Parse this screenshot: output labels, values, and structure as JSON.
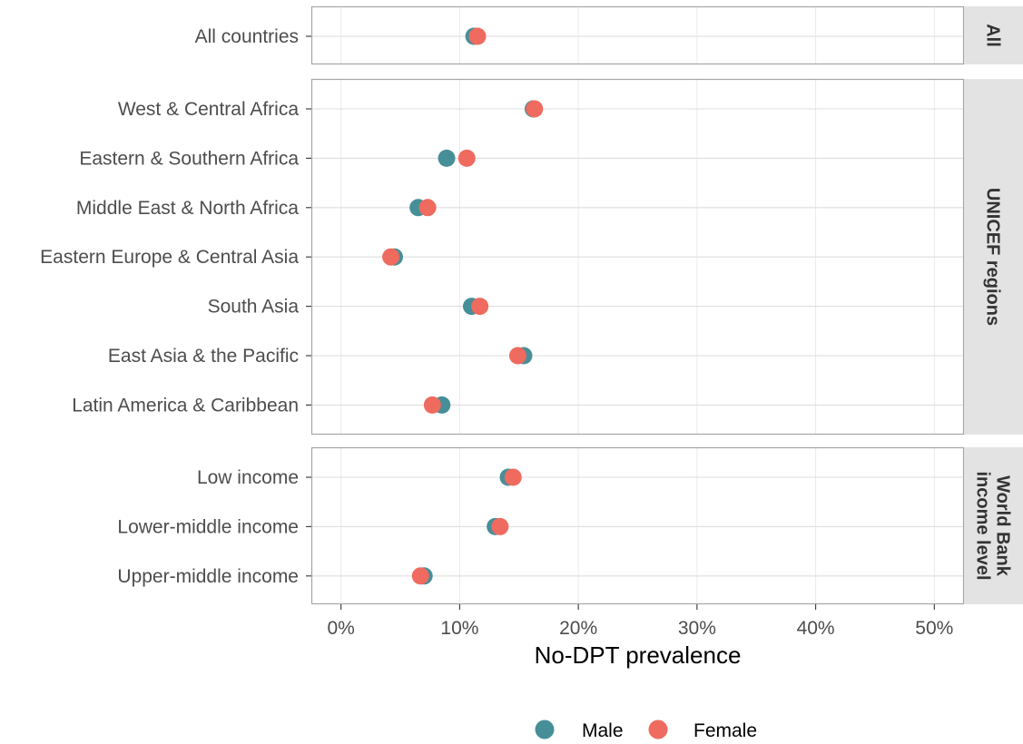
{
  "chart_data": {
    "type": "scatter",
    "xlabel": "No-DPT prevalence",
    "xlim": [
      -2.5,
      52.5
    ],
    "x_ticks": [
      0,
      10,
      20,
      30,
      40,
      50
    ],
    "x_tick_labels": [
      "0%",
      "10%",
      "20%",
      "30%",
      "40%",
      "50%"
    ],
    "grid": true,
    "legend_position": "bottom",
    "legend": [
      {
        "name": "Male",
        "color": "#478f98"
      },
      {
        "name": "Female",
        "color": "#ef6a5f"
      }
    ],
    "panels": [
      {
        "strip_lines": [
          "All"
        ],
        "categories": [
          "All countries"
        ],
        "male": [
          11.2
        ],
        "female": [
          11.5
        ]
      },
      {
        "strip_lines": [
          "UNICEF regions"
        ],
        "categories": [
          "West & Central Africa",
          "Eastern & Southern Africa",
          "Middle East & North Africa",
          "Eastern Europe & Central Asia",
          "South Asia",
          "East Asia & the Pacific",
          "Latin America & Caribbean"
        ],
        "male": [
          16.2,
          8.9,
          6.5,
          4.5,
          11.0,
          15.4,
          8.5
        ],
        "female": [
          16.3,
          10.6,
          7.3,
          4.2,
          11.7,
          14.9,
          7.7
        ]
      },
      {
        "strip_lines": [
          "World Bank",
          "income level"
        ],
        "categories": [
          "Low income",
          "Lower-middle income",
          "Upper-middle income"
        ],
        "male": [
          14.1,
          13.0,
          7.0
        ],
        "female": [
          14.5,
          13.4,
          6.7
        ]
      }
    ]
  }
}
